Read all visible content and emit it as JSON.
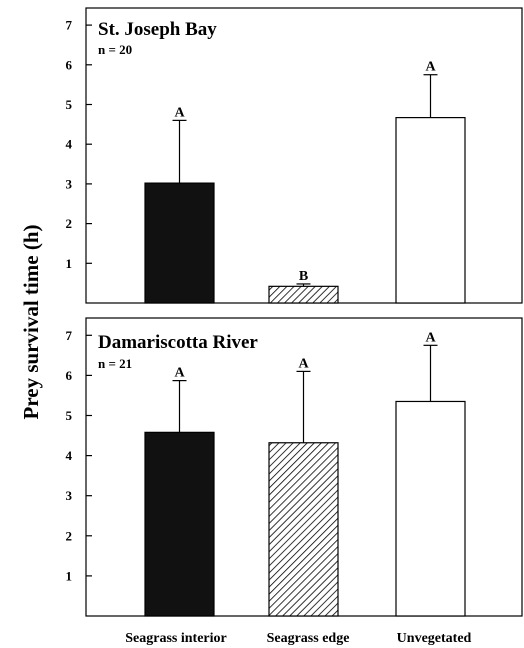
{
  "chart_data": [
    {
      "type": "bar",
      "title": "St. Joseph Bay",
      "subtitle": "n = 20",
      "categories": [
        "Seagrass interior",
        "Seagrass edge",
        "Unvegetated"
      ],
      "values": [
        3.02,
        0.42,
        4.67
      ],
      "error_upper": [
        4.6,
        0.48,
        5.75
      ],
      "significance": [
        "A",
        "B",
        "A"
      ],
      "ylim": [
        0,
        7.5
      ],
      "yticks": [
        1,
        2,
        3,
        4,
        5,
        6,
        7
      ],
      "fills": [
        "solid-black",
        "hatched",
        "white"
      ]
    },
    {
      "type": "bar",
      "title": "Damariscotta River",
      "subtitle": "n = 21",
      "categories": [
        "Seagrass interior",
        "Seagrass edge",
        "Unvegetated"
      ],
      "values": [
        4.58,
        4.32,
        5.35
      ],
      "error_upper": [
        5.87,
        6.1,
        6.75
      ],
      "significance": [
        "A",
        "A",
        "A"
      ],
      "ylim": [
        0,
        7.5
      ],
      "yticks": [
        1,
        2,
        3,
        4,
        5,
        6,
        7
      ],
      "fills": [
        "solid-black",
        "hatched",
        "white"
      ]
    }
  ],
  "ylabel": "Prey survival time (h)",
  "xlabels": [
    "Seagrass interior",
    "Seagrass edge",
    "Unvegetated"
  ],
  "colors": {
    "ink": "#000000",
    "background": "#ffffff",
    "bar_dark": "#111111"
  }
}
